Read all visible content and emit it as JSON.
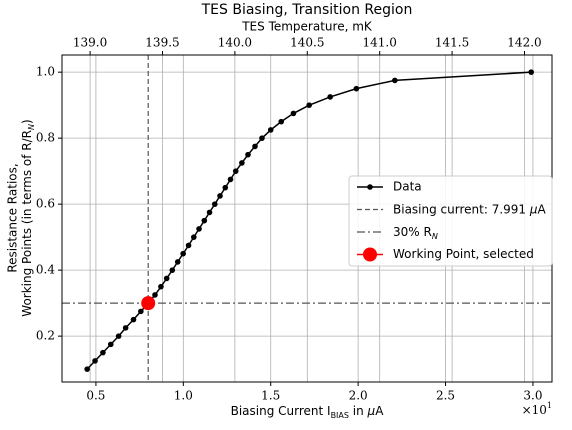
{
  "chart_data": {
    "type": "line",
    "title": "TES Biasing, Transition Region",
    "x2label": "TES Temperature, mK",
    "xlabel": [
      "Biasing Current I",
      "BIAS",
      " in ",
      "μ",
      "A"
    ],
    "ylabel": [
      "Resistance Ratios,",
      "Working Points (in terms of R/R",
      "N",
      ")"
    ],
    "offset_text": [
      "×10",
      "1"
    ],
    "x": [
      0.45,
      0.495,
      0.54,
      0.585,
      0.63,
      0.67,
      0.715,
      0.757,
      0.8,
      0.838,
      0.872,
      0.905,
      0.937,
      0.968,
      0.999,
      1.03,
      1.06,
      1.09,
      1.12,
      1.15,
      1.18,
      1.21,
      1.24,
      1.27,
      1.3,
      1.335,
      1.37,
      1.41,
      1.45,
      1.5,
      1.56,
      1.63,
      1.72,
      1.84,
      1.99,
      2.21,
      2.99
    ],
    "series": [
      {
        "name": "Data",
        "color": "#000000",
        "values": [
          0.1,
          0.125,
          0.15,
          0.175,
          0.2,
          0.225,
          0.25,
          0.275,
          0.3,
          0.325,
          0.35,
          0.375,
          0.4,
          0.425,
          0.45,
          0.475,
          0.5,
          0.525,
          0.55,
          0.575,
          0.6,
          0.625,
          0.65,
          0.675,
          0.7,
          0.725,
          0.75,
          0.775,
          0.8,
          0.825,
          0.85,
          0.875,
          0.9,
          0.925,
          0.95,
          0.975,
          1.0
        ]
      }
    ],
    "vline": {
      "name": [
        "Biasing current: 7.991 ",
        "μ",
        "A"
      ],
      "x": 0.7991,
      "color": "#555555"
    },
    "hline": {
      "name": [
        "30% R",
        "N"
      ],
      "y": 0.3,
      "color": "#555555"
    },
    "point": {
      "name": "Working Point, selected",
      "x": 0.7991,
      "y": 0.3,
      "color": "#ff0000"
    },
    "xlim": [
      0.306,
      3.109
    ],
    "xticks": [
      0.5,
      {
        "value": 1.0,
        "label": "1.0"
      },
      1.5,
      {
        "value": 2.0,
        "label": "2.0"
      },
      2.5,
      {
        "value": 3.0,
        "label": "3.0"
      }
    ],
    "x2lim": [
      138.806,
      142.19
    ],
    "x2ticks": [
      {
        "value": 139.0,
        "label": "139.0"
      },
      139.5,
      {
        "value": 140.0,
        "label": "140.0"
      },
      140.5,
      {
        "value": 141.0,
        "label": "141.0"
      },
      141.5,
      {
        "value": 142.0,
        "label": "142.0"
      }
    ],
    "ylim": [
      0.061,
      1.052
    ],
    "yticks": [
      0.2,
      0.4,
      0.6,
      0.8,
      {
        "value": 1.0,
        "label": "1.0"
      }
    ],
    "grid": true,
    "legend": "right"
  }
}
